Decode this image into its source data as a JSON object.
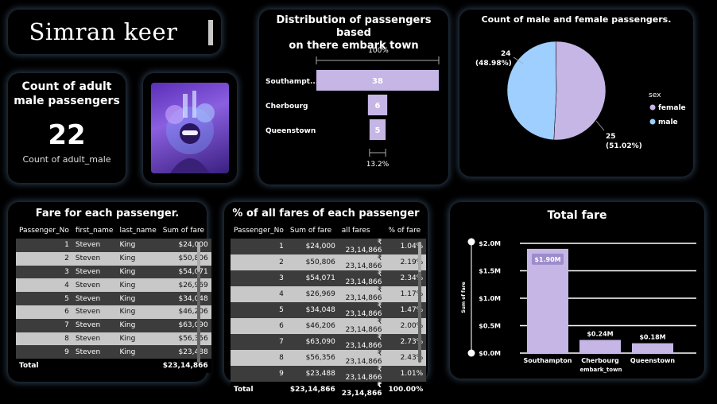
{
  "header": {
    "name": "Simran keer"
  },
  "kpi": {
    "title_line1": "Count of adult",
    "title_line2": "male passengers",
    "value": "22",
    "label": "Count of adult_male"
  },
  "embark_chart": {
    "title_line1": "Distribution of passengers based",
    "title_line2": "on there embark town",
    "top_pct": "100%",
    "bottom_pct": "13.2%"
  },
  "gender_chart": {
    "title": "Count of male and female passengers.",
    "legend_title": "sex"
  },
  "fare_table": {
    "title": "Fare for each passenger.",
    "headers": [
      "Passenger_No",
      "first_name",
      "last_name",
      "Sum of fare"
    ],
    "rows": [
      [
        "1",
        "Steven",
        "King",
        "$24,000"
      ],
      [
        "2",
        "Steven",
        "King",
        "$50,806"
      ],
      [
        "3",
        "Steven",
        "King",
        "$54,071"
      ],
      [
        "4",
        "Steven",
        "King",
        "$26,969"
      ],
      [
        "5",
        "Steven",
        "King",
        "$34,048"
      ],
      [
        "6",
        "Steven",
        "King",
        "$46,206"
      ],
      [
        "7",
        "Steven",
        "King",
        "$63,090"
      ],
      [
        "8",
        "Steven",
        "King",
        "$56,356"
      ],
      [
        "9",
        "Steven",
        "King",
        "$23,488"
      ]
    ],
    "total_label": "Total",
    "total_value": "$23,14,866"
  },
  "pct_table": {
    "title": "% of all fares of each passenger",
    "headers": [
      "Passenger_No",
      "Sum of fare",
      "all fares",
      "% of fare"
    ],
    "rows": [
      [
        "1",
        "$24,000",
        "₹ 23,14,866",
        "1.04%"
      ],
      [
        "2",
        "$50,806",
        "₹ 23,14,866",
        "2.19%"
      ],
      [
        "3",
        "$54,071",
        "₹ 23,14,866",
        "2.34%"
      ],
      [
        "4",
        "$26,969",
        "₹ 23,14,866",
        "1.17%"
      ],
      [
        "5",
        "$34,048",
        "₹ 23,14,866",
        "1.47%"
      ],
      [
        "6",
        "$46,206",
        "₹ 23,14,866",
        "2.00%"
      ],
      [
        "7",
        "$63,090",
        "₹ 23,14,866",
        "2.73%"
      ],
      [
        "8",
        "$56,356",
        "₹ 23,14,866",
        "2.43%"
      ],
      [
        "9",
        "$23,488",
        "₹ 23,14,866",
        "1.01%"
      ]
    ],
    "total_row": [
      "Total",
      "$23,14,866",
      "₹ 23,14,866",
      "100.00%"
    ]
  },
  "colors": {
    "bar": "#c5b6e6",
    "male": "#9fcfff",
    "female": "#c5b6e6",
    "gridline": "#ffffff"
  },
  "chart_data": [
    {
      "type": "bar",
      "orientation": "horizontal",
      "title": "Distribution of passengers based on there embark town",
      "categories": [
        "Southampt...",
        "Cherbourg",
        "Queenstown"
      ],
      "values": [
        38,
        6,
        5
      ],
      "value_labels": [
        "38",
        "6",
        "5"
      ]
    },
    {
      "type": "pie",
      "title": "Count of male and female passengers.",
      "legend_title": "sex",
      "legend": [
        "female",
        "male"
      ],
      "slices": [
        {
          "name": "female",
          "value": 25,
          "label_value": "25",
          "label_pct": "(51.02%)"
        },
        {
          "name": "male",
          "value": 24,
          "label_value": "24",
          "label_pct": "(48.98%)"
        }
      ],
      "legend_placement": "right"
    },
    {
      "type": "bar",
      "title": "Total fare",
      "xlabel": "embark_town",
      "ylabel": "Sum of fare",
      "categories": [
        "Southampton",
        "Cherbourg",
        "Queenstown"
      ],
      "values": [
        1900000,
        240000,
        180000
      ],
      "value_labels": [
        "$1.90M",
        "$0.24M",
        "$0.18M"
      ],
      "y_ticks": [
        0,
        500000,
        1000000,
        1500000,
        2000000
      ],
      "y_tick_labels": [
        "$0.0M",
        "$0.5M",
        "$1.0M",
        "$1.5M",
        "$2.0M"
      ],
      "ylim": [
        0,
        2000000
      ],
      "grid": true
    }
  ]
}
